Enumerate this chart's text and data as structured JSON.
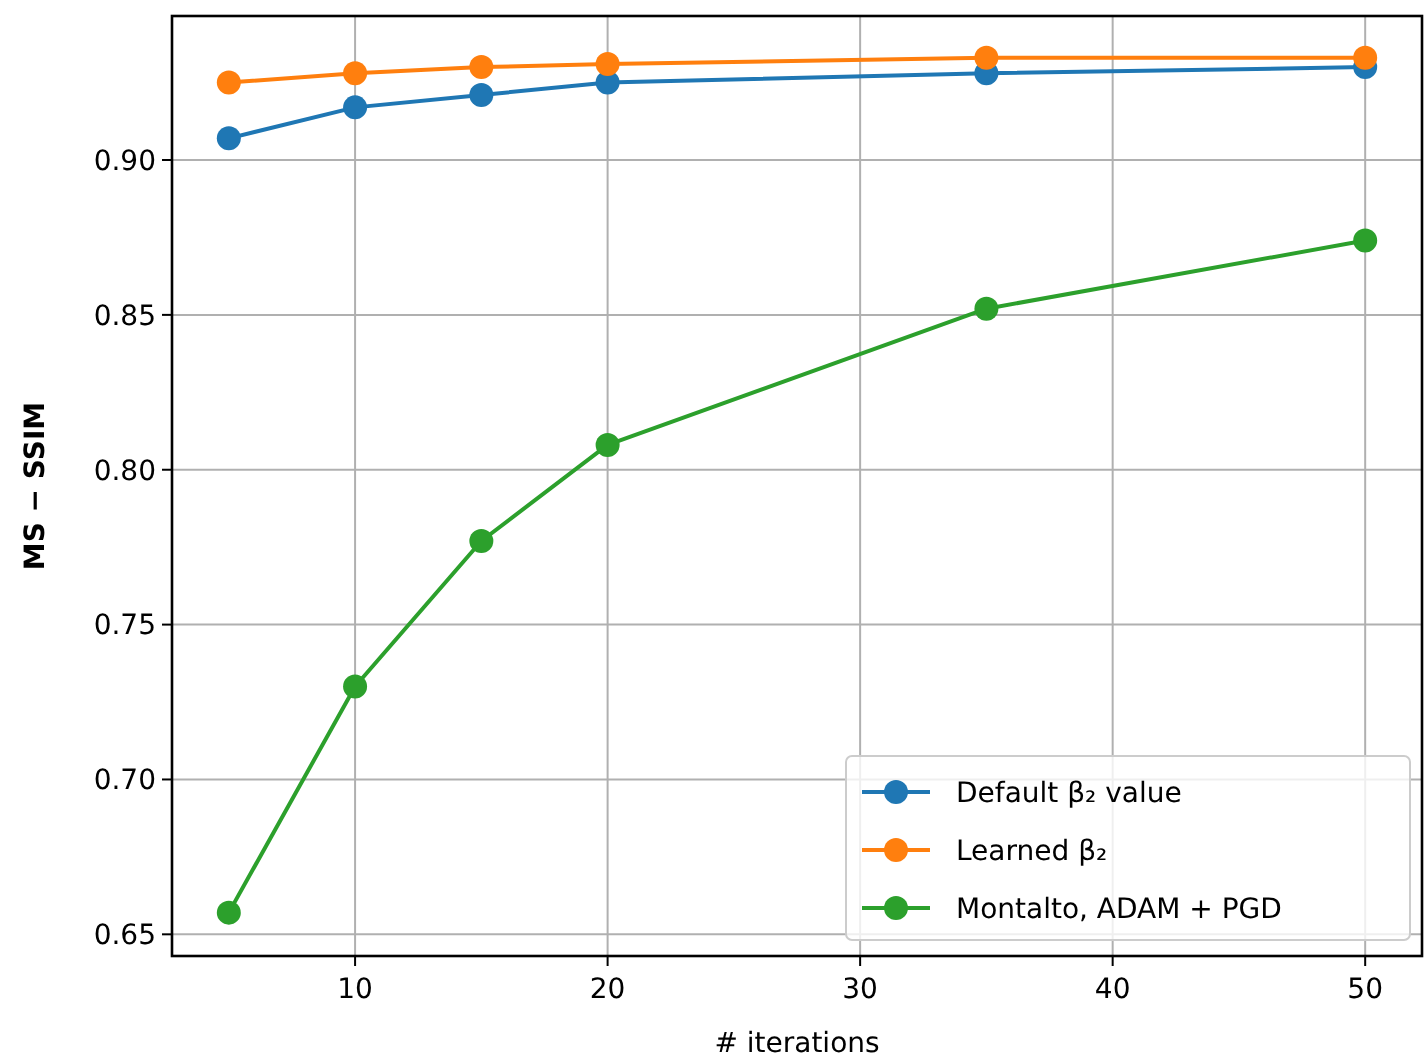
{
  "chart_data": {
    "type": "line",
    "xlabel": "# iterations",
    "ylabel": "MS − SSIM",
    "x": [
      5,
      10,
      15,
      20,
      35,
      50
    ],
    "series": [
      {
        "name": "Default β₂ value",
        "color": "#1f77b4",
        "values": [
          0.907,
          0.917,
          0.921,
          0.925,
          0.928,
          0.93
        ]
      },
      {
        "name": "Learned β₂",
        "color": "#ff7f0e",
        "values": [
          0.925,
          0.928,
          0.93,
          0.931,
          0.933,
          0.933
        ]
      },
      {
        "name": "Montalto, ADAM + PGD",
        "color": "#2ca02c",
        "values": [
          0.657,
          0.73,
          0.777,
          0.808,
          0.852,
          0.874
        ]
      }
    ],
    "xlim": [
      2.75,
      52.25
    ],
    "ylim": [
      0.643,
      0.9465
    ],
    "xticks": [
      10,
      20,
      30,
      40,
      50
    ],
    "yticks": [
      {
        "value": 0.65,
        "label": "0.65"
      },
      {
        "value": 0.7,
        "label": "0.70"
      },
      {
        "value": 0.75,
        "label": "0.75"
      },
      {
        "value": 0.8,
        "label": "0.80"
      },
      {
        "value": 0.85,
        "label": "0.85"
      },
      {
        "value": 0.9,
        "label": "0.90"
      }
    ],
    "grid": true,
    "legend": "bottom right",
    "marker": "circle",
    "line_style": "solid"
  }
}
